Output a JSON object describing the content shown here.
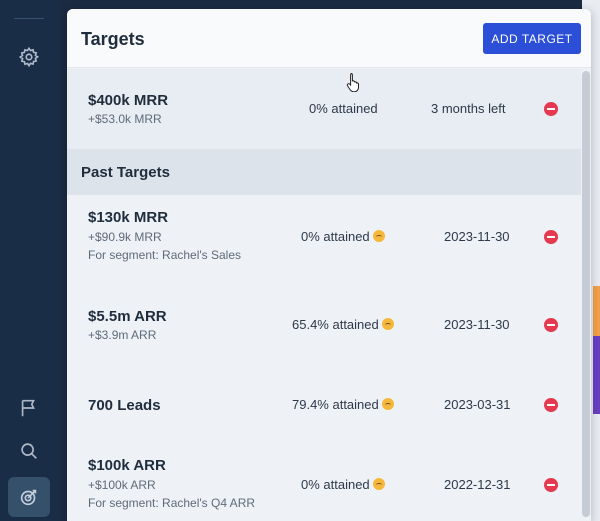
{
  "nav": {
    "items": [
      {
        "icon": "gear-icon"
      },
      {
        "icon": "flag-icon"
      },
      {
        "icon": "search-icon"
      },
      {
        "icon": "target-icon",
        "active": true
      }
    ]
  },
  "panel": {
    "title": "Targets",
    "add_button_label": "ADD TARGET"
  },
  "current_targets": [
    {
      "name": "$400k MRR",
      "delta": "+$53.0k MRR",
      "attained": "0% attained",
      "status": "3 months left"
    }
  ],
  "past_section": {
    "title": "Past Targets"
  },
  "past_targets": [
    {
      "name": "$130k MRR",
      "delta": "+$90.9k MRR",
      "segment": "For segment: Rachel's Sales",
      "attained": "0% attained",
      "date": "2023-11-30"
    },
    {
      "name": "$5.5m ARR",
      "delta": "+$3.9m ARR",
      "segment": "",
      "attained": "65.4% attained",
      "date": "2023-11-30"
    },
    {
      "name": "700 Leads",
      "delta": "",
      "segment": "",
      "attained": "79.4% attained",
      "date": "2023-03-31"
    },
    {
      "name": "$100k ARR",
      "delta": "+$100k ARR",
      "segment": "For segment: Rachel's Q4 ARR",
      "attained": "0% attained",
      "date": "2022-12-31"
    }
  ],
  "colors": {
    "accent": "#2b4fd6",
    "remove": "#e5394f",
    "nav_bg": "#1a2d46"
  }
}
